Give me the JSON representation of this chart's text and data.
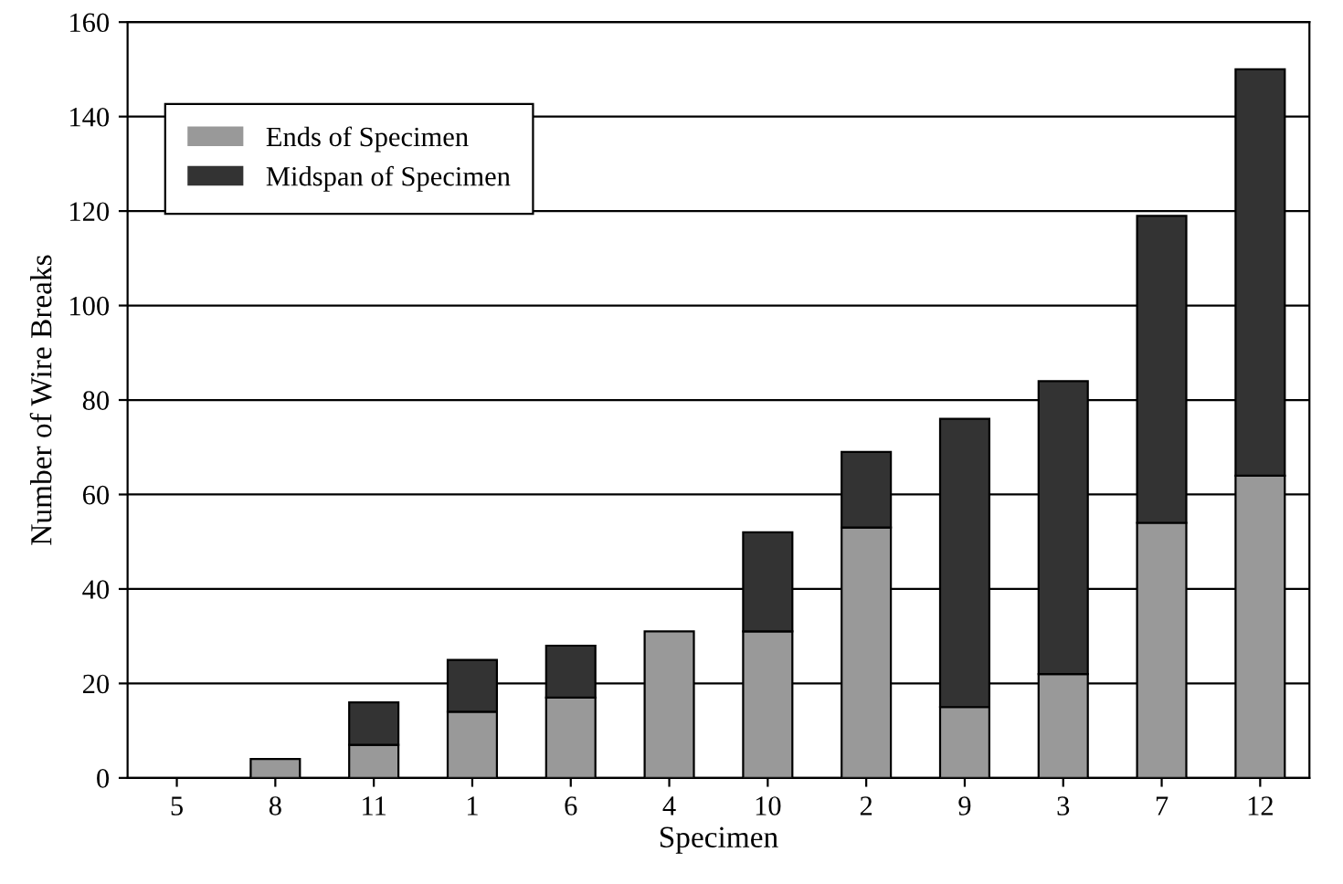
{
  "chart_data": {
    "type": "bar",
    "stacked": true,
    "xlabel": "Specimen",
    "ylabel": "Number of Wire Breaks",
    "categories": [
      "5",
      "8",
      "11",
      "1",
      "6",
      "4",
      "10",
      "2",
      "9",
      "3",
      "7",
      "12"
    ],
    "series": [
      {
        "name": "Ends of Specimen",
        "color": "#999999",
        "values": [
          0,
          4,
          7,
          14,
          17,
          31,
          31,
          53,
          15,
          22,
          54,
          64
        ]
      },
      {
        "name": "Midspan of Specimen",
        "color": "#333333",
        "values": [
          0,
          0,
          9,
          11,
          11,
          0,
          21,
          16,
          61,
          62,
          65,
          86
        ]
      }
    ],
    "ylim": [
      0,
      160
    ],
    "yticks": [
      0,
      20,
      40,
      60,
      80,
      100,
      120,
      140,
      160
    ],
    "grid": "y",
    "legend": "top left"
  }
}
